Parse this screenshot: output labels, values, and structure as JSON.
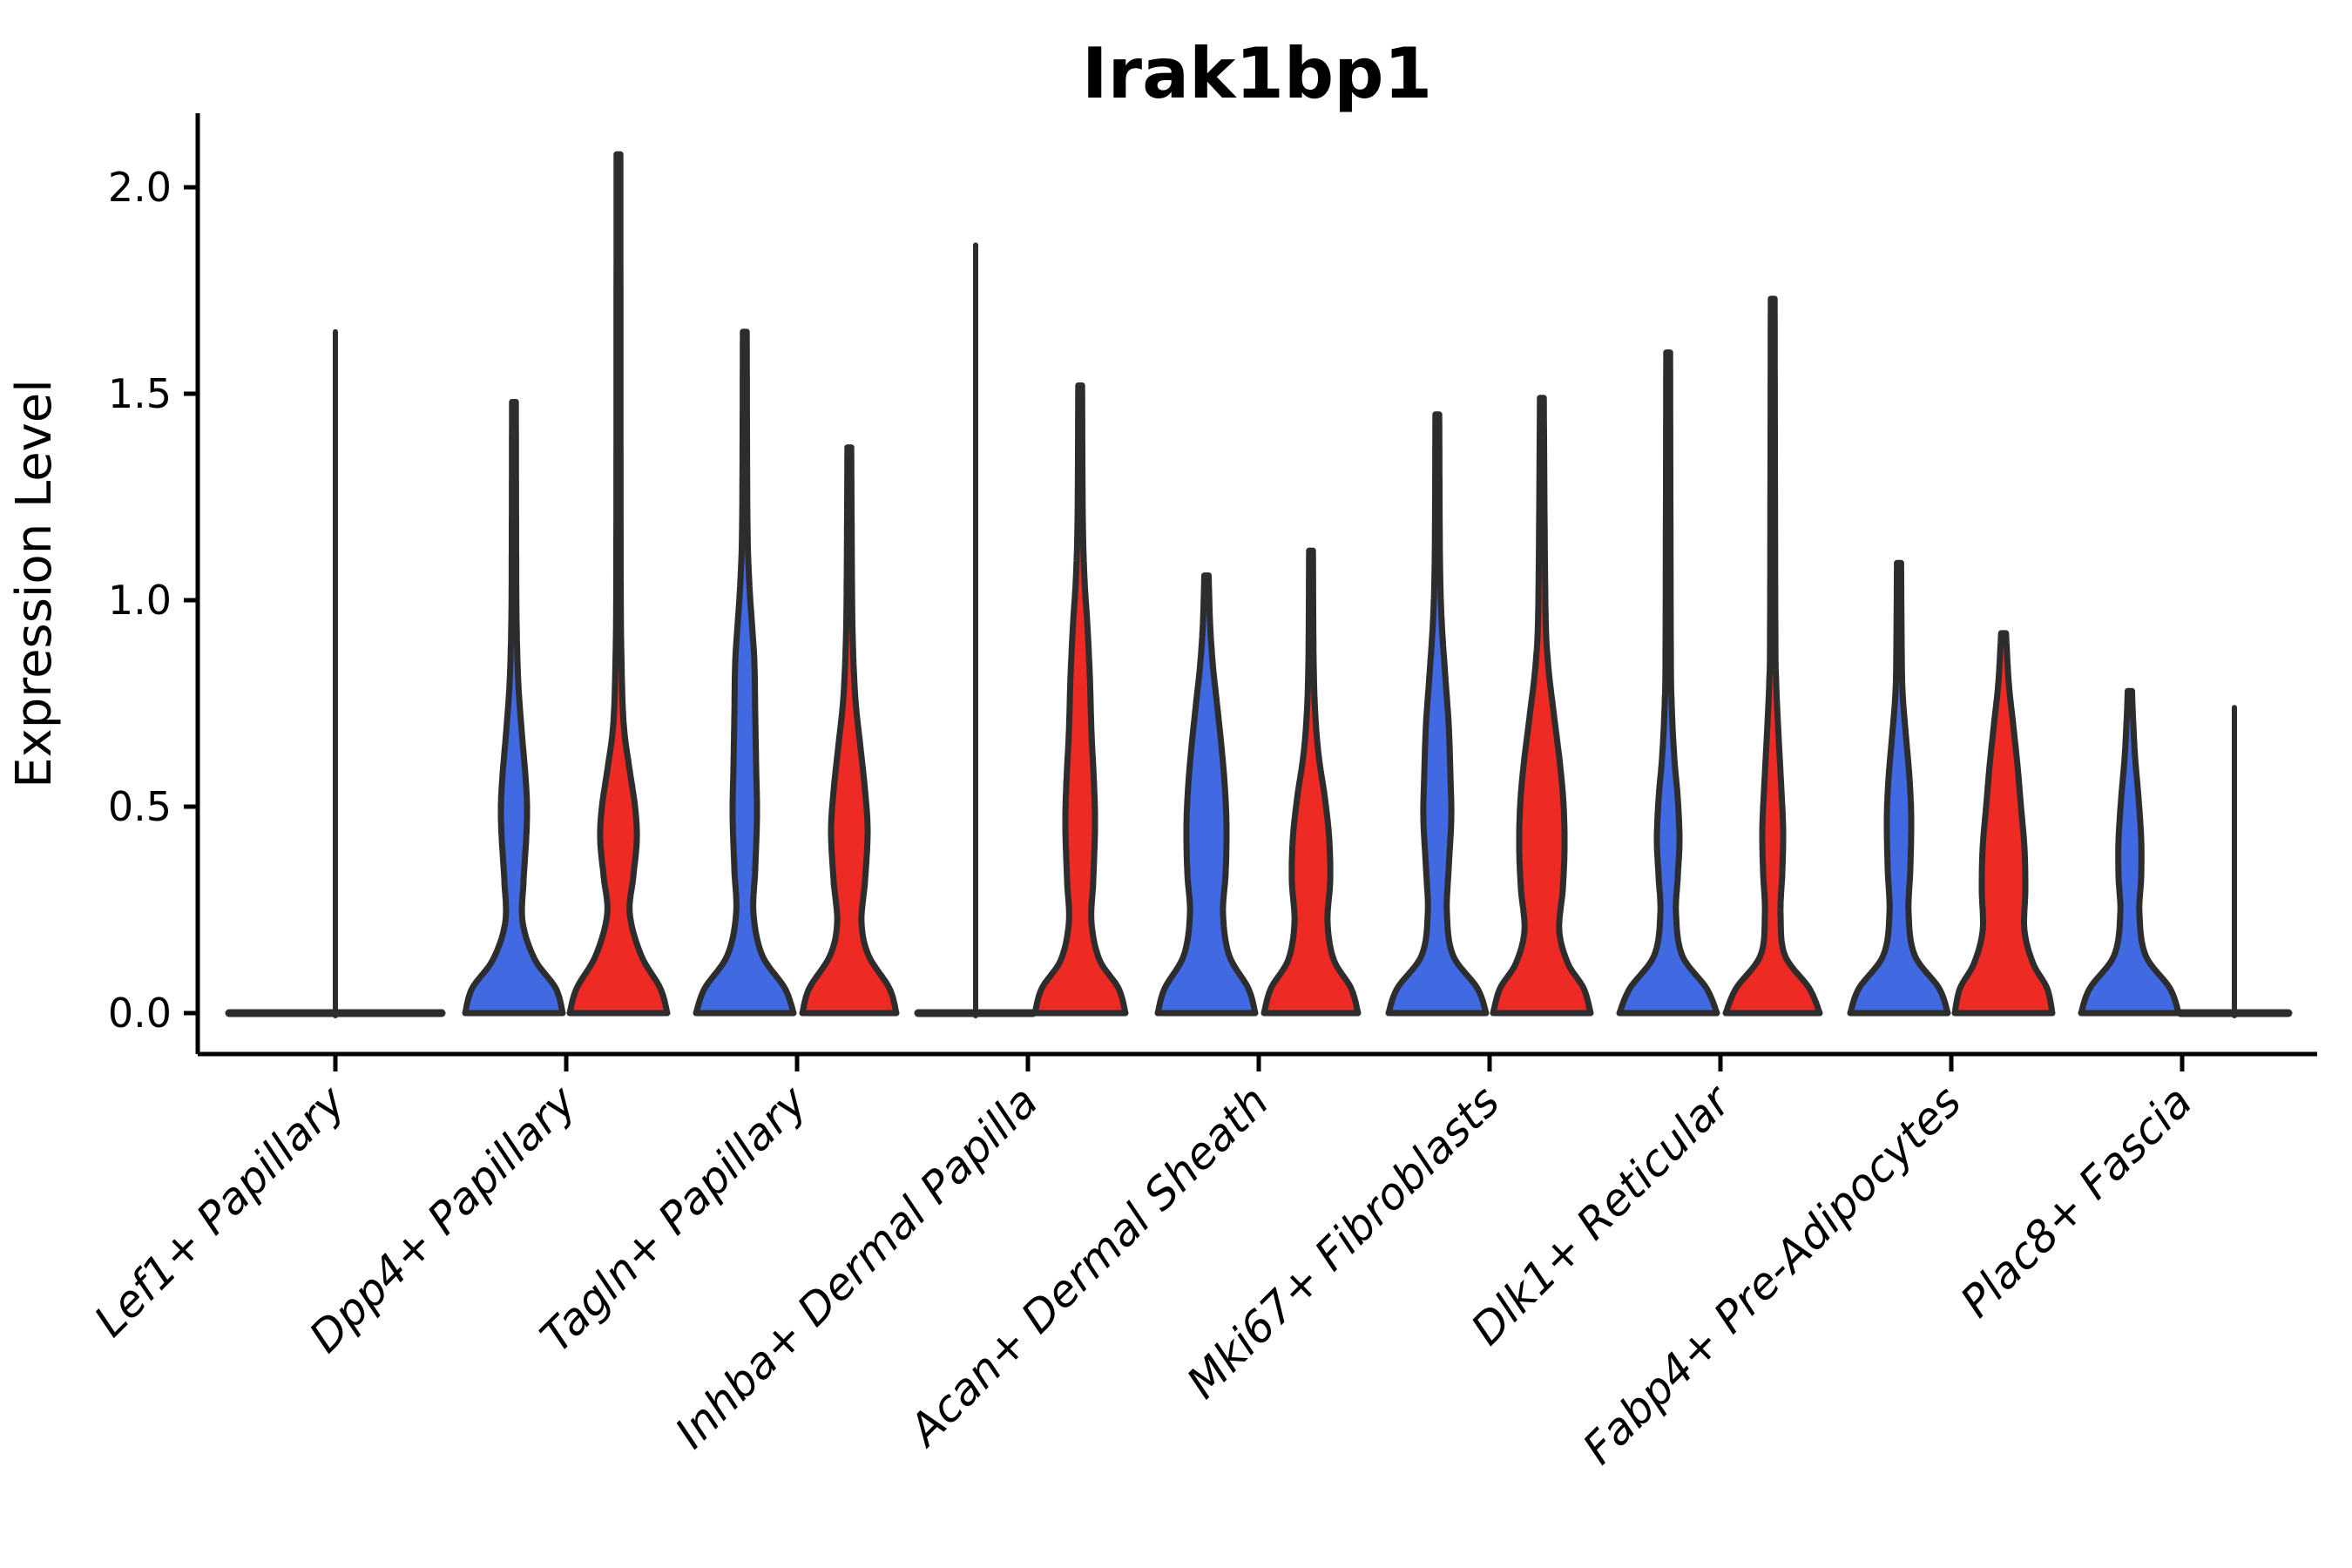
{
  "colors": {
    "background": "#ffffff",
    "blue": "#4169e1",
    "red": "#ed2a24",
    "outline": "#2d2d2d",
    "axis": "#000000",
    "text": "#000000"
  },
  "chart_data": {
    "type": "violin",
    "title": "Irak1bp1",
    "ylabel": "Expression Level",
    "xlabel": "",
    "ylim": [
      0,
      2.25
    ],
    "grid": "off",
    "legend": "none",
    "yticks": [
      {
        "label": "0.0",
        "value": 0.0
      },
      {
        "label": "0.5",
        "value": 0.5
      },
      {
        "label": "1.0",
        "value": 1.0
      },
      {
        "label": "1.5",
        "value": 1.5
      },
      {
        "label": "2.0",
        "value": 2.0
      }
    ],
    "categories": [
      "Lef1+ Papillary",
      "Dpp4+ Papillary",
      "Tagln+ Papillary",
      "Inhba+ Dermal Papilla",
      "Acan+ Dermal Sheath",
      "Mki67+ Fibroblasts",
      "Dlk1+ Reticular",
      "Fabp4+ Pre-Adipocytes",
      "Plac8+ Fascia"
    ],
    "groups": [
      "blue",
      "red"
    ],
    "violins": [
      {
        "category": "Lef1+ Papillary",
        "group": "blue",
        "position": "center",
        "style": "flat",
        "max": 1.65,
        "half_span": 122,
        "profile": []
      },
      {
        "category": "Dpp4+ Papillary",
        "group": "blue",
        "position": "left",
        "style": "body",
        "max": 1.48,
        "profile": [
          [
            0,
            56
          ],
          [
            0.06,
            48
          ],
          [
            0.13,
            24
          ],
          [
            0.22,
            10
          ],
          [
            0.32,
            11
          ],
          [
            0.42,
            14
          ],
          [
            0.5,
            15
          ],
          [
            0.58,
            13
          ],
          [
            0.68,
            9
          ],
          [
            0.8,
            5
          ],
          [
            0.95,
            3
          ],
          [
            1.15,
            2.5
          ],
          [
            1.48,
            2.2
          ]
        ]
      },
      {
        "category": "Dpp4+ Papillary",
        "group": "red",
        "position": "right",
        "style": "body",
        "max": 2.08,
        "profile": [
          [
            0,
            56
          ],
          [
            0.06,
            48
          ],
          [
            0.14,
            26
          ],
          [
            0.24,
            13
          ],
          [
            0.33,
            17
          ],
          [
            0.42,
            21
          ],
          [
            0.5,
            19
          ],
          [
            0.6,
            12
          ],
          [
            0.7,
            6
          ],
          [
            0.85,
            3.5
          ],
          [
            1.1,
            2.5
          ],
          [
            2.08,
            2.2
          ]
        ]
      },
      {
        "category": "Tagln+ Papillary",
        "group": "blue",
        "position": "left",
        "style": "body",
        "max": 1.65,
        "profile": [
          [
            0,
            56
          ],
          [
            0.06,
            46
          ],
          [
            0.14,
            20
          ],
          [
            0.24,
            10
          ],
          [
            0.35,
            12
          ],
          [
            0.48,
            14
          ],
          [
            0.6,
            13
          ],
          [
            0.72,
            12
          ],
          [
            0.85,
            11
          ],
          [
            0.95,
            8
          ],
          [
            1.05,
            5
          ],
          [
            1.2,
            3
          ],
          [
            1.65,
            2.2
          ]
        ]
      },
      {
        "category": "Tagln+ Papillary",
        "group": "red",
        "position": "right",
        "style": "body",
        "max": 1.37,
        "profile": [
          [
            0,
            54
          ],
          [
            0.06,
            46
          ],
          [
            0.14,
            22
          ],
          [
            0.22,
            14
          ],
          [
            0.32,
            18
          ],
          [
            0.44,
            21
          ],
          [
            0.54,
            18
          ],
          [
            0.64,
            13
          ],
          [
            0.76,
            7
          ],
          [
            0.9,
            4
          ],
          [
            1.05,
            3
          ],
          [
            1.37,
            2.2
          ]
        ]
      },
      {
        "category": "Inhba+ Dermal Papilla",
        "group": "blue",
        "position": "left",
        "style": "flat",
        "max": 1.86,
        "half_span": 66,
        "profile": []
      },
      {
        "category": "Inhba+ Dermal Papilla",
        "group": "red",
        "position": "right",
        "style": "body",
        "max": 1.52,
        "profile": [
          [
            0,
            52
          ],
          [
            0.06,
            44
          ],
          [
            0.13,
            22
          ],
          [
            0.22,
            13
          ],
          [
            0.32,
            15
          ],
          [
            0.45,
            17
          ],
          [
            0.55,
            16
          ],
          [
            0.68,
            13
          ],
          [
            0.82,
            11
          ],
          [
            0.95,
            8
          ],
          [
            1.05,
            5
          ],
          [
            1.2,
            3
          ],
          [
            1.52,
            2.2
          ]
        ]
      },
      {
        "category": "Acan+ Dermal Sheath",
        "group": "blue",
        "position": "left",
        "style": "body",
        "max": 1.06,
        "profile": [
          [
            0,
            56
          ],
          [
            0.06,
            48
          ],
          [
            0.14,
            26
          ],
          [
            0.24,
            19
          ],
          [
            0.34,
            22
          ],
          [
            0.45,
            23
          ],
          [
            0.55,
            21
          ],
          [
            0.65,
            17
          ],
          [
            0.75,
            12
          ],
          [
            0.85,
            7
          ],
          [
            0.95,
            4
          ],
          [
            1.06,
            2.5
          ]
        ]
      },
      {
        "category": "Acan+ Dermal Sheath",
        "group": "red",
        "position": "right",
        "style": "body",
        "max": 1.12,
        "profile": [
          [
            0,
            54
          ],
          [
            0.06,
            46
          ],
          [
            0.13,
            26
          ],
          [
            0.22,
            19
          ],
          [
            0.32,
            22
          ],
          [
            0.42,
            21
          ],
          [
            0.52,
            16
          ],
          [
            0.62,
            9
          ],
          [
            0.72,
            5
          ],
          [
            0.85,
            3
          ],
          [
            1.12,
            2.2
          ]
        ]
      },
      {
        "category": "Mki67+ Fibroblasts",
        "group": "blue",
        "position": "left",
        "style": "body",
        "max": 1.45,
        "profile": [
          [
            0,
            56
          ],
          [
            0.06,
            46
          ],
          [
            0.14,
            18
          ],
          [
            0.24,
            11
          ],
          [
            0.35,
            13
          ],
          [
            0.47,
            16
          ],
          [
            0.58,
            15
          ],
          [
            0.7,
            13
          ],
          [
            0.82,
            9
          ],
          [
            0.95,
            5
          ],
          [
            1.1,
            3
          ],
          [
            1.45,
            2.2
          ]
        ]
      },
      {
        "category": "Mki67+ Fibroblasts",
        "group": "red",
        "position": "right",
        "style": "body",
        "max": 1.49,
        "profile": [
          [
            0,
            56
          ],
          [
            0.06,
            48
          ],
          [
            0.12,
            30
          ],
          [
            0.2,
            20
          ],
          [
            0.3,
            24
          ],
          [
            0.4,
            26
          ],
          [
            0.5,
            25
          ],
          [
            0.6,
            21
          ],
          [
            0.72,
            14
          ],
          [
            0.85,
            7
          ],
          [
            1.0,
            4
          ],
          [
            1.49,
            2.2
          ]
        ]
      },
      {
        "category": "Dlk1+ Reticular",
        "group": "blue",
        "position": "left",
        "style": "body",
        "max": 1.6,
        "profile": [
          [
            0,
            56
          ],
          [
            0.06,
            44
          ],
          [
            0.14,
            16
          ],
          [
            0.24,
            9
          ],
          [
            0.33,
            11
          ],
          [
            0.42,
            13
          ],
          [
            0.52,
            11
          ],
          [
            0.62,
            7
          ],
          [
            0.75,
            4
          ],
          [
            0.9,
            3
          ],
          [
            1.6,
            2.2
          ]
        ]
      },
      {
        "category": "Dlk1+ Reticular",
        "group": "red",
        "position": "right",
        "style": "body",
        "max": 1.73,
        "profile": [
          [
            0,
            54
          ],
          [
            0.06,
            42
          ],
          [
            0.14,
            14
          ],
          [
            0.24,
            9
          ],
          [
            0.34,
            11
          ],
          [
            0.44,
            12
          ],
          [
            0.54,
            10
          ],
          [
            0.66,
            7
          ],
          [
            0.8,
            4
          ],
          [
            0.95,
            3
          ],
          [
            1.73,
            2.2
          ]
        ]
      },
      {
        "category": "Fabp4+ Pre-Adipocytes",
        "group": "blue",
        "position": "left",
        "style": "body",
        "max": 1.09,
        "profile": [
          [
            0,
            56
          ],
          [
            0.06,
            46
          ],
          [
            0.14,
            18
          ],
          [
            0.24,
            11
          ],
          [
            0.35,
            13
          ],
          [
            0.47,
            14
          ],
          [
            0.57,
            12
          ],
          [
            0.67,
            8
          ],
          [
            0.78,
            4
          ],
          [
            0.9,
            3
          ],
          [
            1.09,
            2.4
          ]
        ]
      },
      {
        "category": "Fabp4+ Pre-Adipocytes",
        "group": "red",
        "position": "right",
        "style": "body",
        "max": 0.92,
        "profile": [
          [
            0,
            56
          ],
          [
            0.06,
            50
          ],
          [
            0.12,
            34
          ],
          [
            0.2,
            24
          ],
          [
            0.3,
            25
          ],
          [
            0.4,
            24
          ],
          [
            0.5,
            20
          ],
          [
            0.6,
            16
          ],
          [
            0.7,
            11
          ],
          [
            0.8,
            6
          ],
          [
            0.92,
            2.8
          ]
        ]
      },
      {
        "category": "Plac8+ Fascia",
        "group": "blue",
        "position": "left",
        "style": "body",
        "max": 0.78,
        "profile": [
          [
            0,
            56
          ],
          [
            0.06,
            46
          ],
          [
            0.14,
            18
          ],
          [
            0.24,
            11
          ],
          [
            0.33,
            13
          ],
          [
            0.42,
            13
          ],
          [
            0.52,
            10
          ],
          [
            0.62,
            6
          ],
          [
            0.72,
            3.5
          ],
          [
            0.78,
            2.5
          ]
        ]
      },
      {
        "category": "Plac8+ Fascia",
        "group": "red",
        "position": "right",
        "style": "flat",
        "max": 0.74,
        "half_span": 62,
        "profile": []
      }
    ]
  }
}
